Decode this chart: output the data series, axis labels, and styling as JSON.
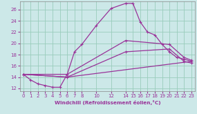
{
  "xlabel": "Windchill (Refroidissement éolien,°C)",
  "bg_color": "#cce8e8",
  "line_color": "#993399",
  "grid_color": "#99ccbb",
  "text_color": "#993399",
  "xlim": [
    -0.5,
    23.5
  ],
  "ylim": [
    11.5,
    27.5
  ],
  "xticks": [
    0,
    1,
    2,
    3,
    4,
    5,
    6,
    7,
    8,
    10,
    12,
    14,
    15,
    16,
    17,
    18,
    19,
    20,
    21,
    22,
    23
  ],
  "yticks": [
    12,
    14,
    16,
    18,
    20,
    22,
    24,
    26
  ],
  "line1_x": [
    0,
    1,
    2,
    3,
    4,
    5,
    6,
    7,
    8,
    10,
    12,
    14,
    15,
    16,
    17,
    18,
    19,
    20,
    21,
    22,
    23
  ],
  "line1_y": [
    14.5,
    13.5,
    12.8,
    12.5,
    12.2,
    12.2,
    14.5,
    18.5,
    19.8,
    23.2,
    26.2,
    27.1,
    27.1,
    23.8,
    22.0,
    21.5,
    19.8,
    18.5,
    17.5,
    17.2,
    16.8
  ],
  "line2_x": [
    0,
    6,
    14,
    20,
    22,
    23
  ],
  "line2_y": [
    14.5,
    14.5,
    20.5,
    19.8,
    17.5,
    17.0
  ],
  "line3_x": [
    0,
    6,
    14,
    20,
    22,
    23
  ],
  "line3_y": [
    14.5,
    14.0,
    18.5,
    19.0,
    16.8,
    16.5
  ],
  "line4_x": [
    0,
    6,
    23
  ],
  "line4_y": [
    14.5,
    14.0,
    16.8
  ]
}
